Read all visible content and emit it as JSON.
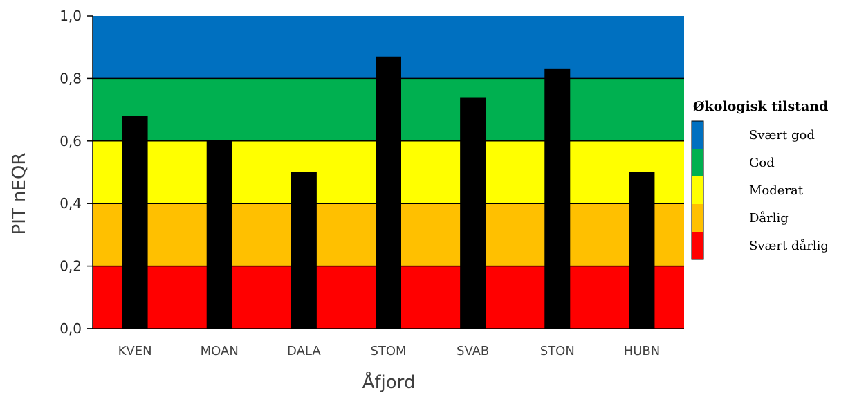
{
  "chart_data": {
    "type": "bar",
    "categories": [
      "KVEN",
      "MOAN",
      "DALA",
      "STOM",
      "SVAB",
      "STON",
      "HUBN"
    ],
    "values": [
      0.68,
      0.6,
      0.5,
      0.87,
      0.74,
      0.83,
      0.5
    ],
    "bar_color": "#000000",
    "xlabel": "Åfjord",
    "ylabel": "PIT nEQR",
    "ylim": [
      0,
      1.0
    ],
    "yticks": [
      "0,0",
      "0,2",
      "0,4",
      "0,6",
      "0,8",
      "1,0"
    ],
    "ytick_values": [
      0,
      0.2,
      0.4,
      0.6,
      0.8,
      1.0
    ],
    "grid": false,
    "background_bands": [
      {
        "from": 0.0,
        "to": 0.2,
        "color": "#ff0000"
      },
      {
        "from": 0.2,
        "to": 0.4,
        "color": "#ffc000"
      },
      {
        "from": 0.4,
        "to": 0.6,
        "color": "#ffff00"
      },
      {
        "from": 0.6,
        "to": 0.8,
        "color": "#00b050"
      },
      {
        "from": 0.8,
        "to": 1.0,
        "color": "#0070c0"
      }
    ],
    "legend": {
      "title": "Økologisk tilstand",
      "placement": "right",
      "items": [
        {
          "label": "Svært god",
          "color": "#0070c0"
        },
        {
          "label": "God",
          "color": "#00b050"
        },
        {
          "label": "Moderat",
          "color": "#ffff00"
        },
        {
          "label": "Dårlig",
          "color": "#ffc000"
        },
        {
          "label": "Svært dårlig",
          "color": "#ff0000"
        }
      ]
    }
  }
}
